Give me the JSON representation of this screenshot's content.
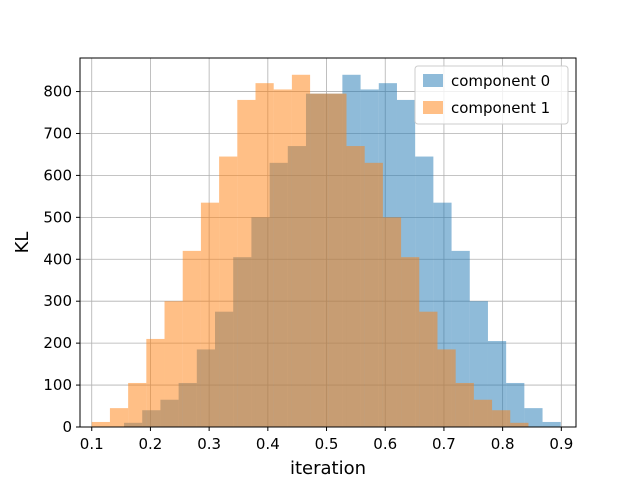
{
  "chart_data": {
    "type": "bar",
    "subtype": "overlapping-histogram",
    "title": "",
    "xlabel": "iteration",
    "ylabel": "KL",
    "xlim": [
      0.08,
      0.925
    ],
    "ylim": [
      0,
      880
    ],
    "xticks": [
      0.1,
      0.2,
      0.3,
      0.4,
      0.5,
      0.6,
      0.7,
      0.8,
      0.9
    ],
    "xtick_labels": [
      "0.1",
      "0.2",
      "0.3",
      "0.4",
      "0.5",
      "0.6",
      "0.7",
      "0.8",
      "0.9"
    ],
    "yticks": [
      0,
      100,
      200,
      300,
      400,
      500,
      600,
      700,
      800
    ],
    "ytick_labels": [
      "0",
      "100",
      "200",
      "300",
      "400",
      "500",
      "600",
      "700",
      "800"
    ],
    "grid": true,
    "legend_position": "top-right",
    "bin_width": 0.031,
    "series": [
      {
        "name": "component 0",
        "color": "#1f77b4",
        "opacity": 0.5,
        "bin_starts": [
          0.155,
          0.186,
          0.217,
          0.248,
          0.279,
          0.31,
          0.341,
          0.372,
          0.403,
          0.434,
          0.465,
          0.496,
          0.527,
          0.558,
          0.589,
          0.62,
          0.651,
          0.682,
          0.713,
          0.744,
          0.775,
          0.806,
          0.837,
          0.868
        ],
        "values": [
          10,
          40,
          65,
          105,
          185,
          275,
          405,
          500,
          630,
          670,
          795,
          795,
          840,
          805,
          820,
          780,
          645,
          535,
          420,
          300,
          205,
          105,
          45,
          12
        ]
      },
      {
        "name": "component 1",
        "color": "#ff7f0e",
        "opacity": 0.5,
        "bin_starts": [
          0.1,
          0.131,
          0.162,
          0.193,
          0.224,
          0.255,
          0.286,
          0.317,
          0.348,
          0.379,
          0.41,
          0.441,
          0.472,
          0.503,
          0.534,
          0.565,
          0.596,
          0.627,
          0.658,
          0.689,
          0.72,
          0.751,
          0.782,
          0.813
        ],
        "values": [
          12,
          45,
          105,
          210,
          300,
          420,
          535,
          645,
          780,
          820,
          805,
          840,
          795,
          795,
          670,
          630,
          500,
          405,
          275,
          185,
          105,
          65,
          40,
          10
        ]
      }
    ]
  }
}
